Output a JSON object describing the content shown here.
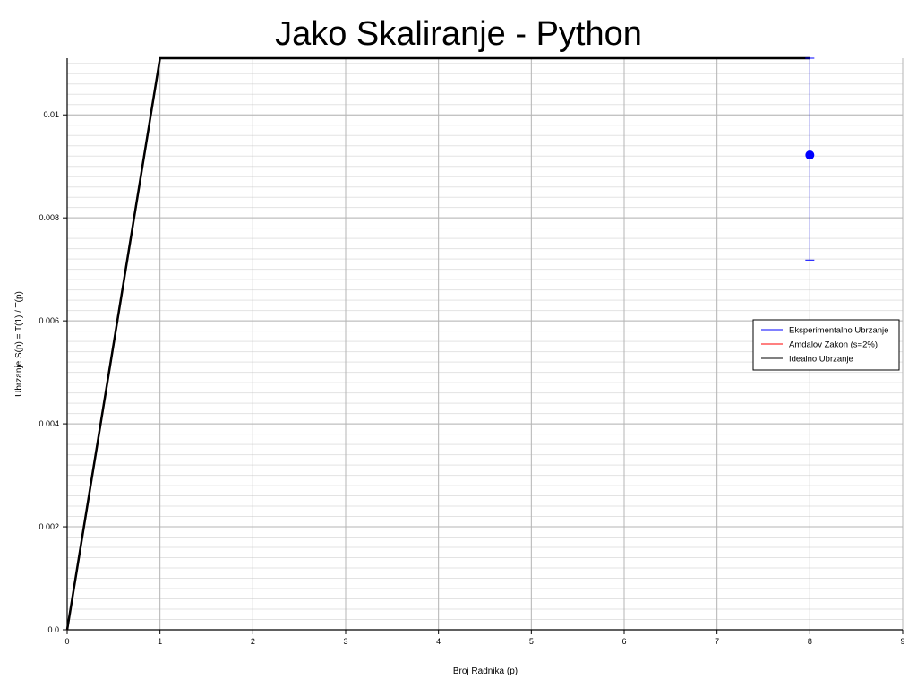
{
  "chart_data": {
    "type": "line",
    "title": "Jako Skaliranje - Python",
    "xlabel": "Broj Radnika (p)",
    "ylabel": "Ubrzanje S(p) = T(1) / T(p)",
    "xlim": [
      0,
      9
    ],
    "ylim": [
      0,
      0.0111
    ],
    "xticks": [
      0,
      1,
      2,
      3,
      4,
      5,
      6,
      7,
      8,
      9
    ],
    "yticks": [
      0.0,
      0.002,
      0.004,
      0.006,
      0.008,
      0.01
    ],
    "ytick_labels": [
      "0.0",
      "0.002",
      "0.004",
      "0.006",
      "0.008",
      "0.01"
    ],
    "grid": true,
    "legend_position": "right",
    "series": [
      {
        "name": "Eksperimentalno Ubrzanje",
        "color": "#0000ff",
        "x": [
          8
        ],
        "y": [
          0.00922
        ],
        "error_low": [
          0.00718
        ],
        "error_high": [
          0.0111
        ]
      },
      {
        "name": "Amdalov Zakon (s=2%)",
        "color": "#ff0000",
        "x": [
          0,
          1,
          8
        ],
        "y": [
          0,
          0.0111,
          0.0111
        ]
      },
      {
        "name": "Idealno Ubrzanje",
        "color": "#000000",
        "x": [
          0,
          1,
          8
        ],
        "y": [
          0,
          0.0111,
          0.0111
        ]
      }
    ]
  }
}
